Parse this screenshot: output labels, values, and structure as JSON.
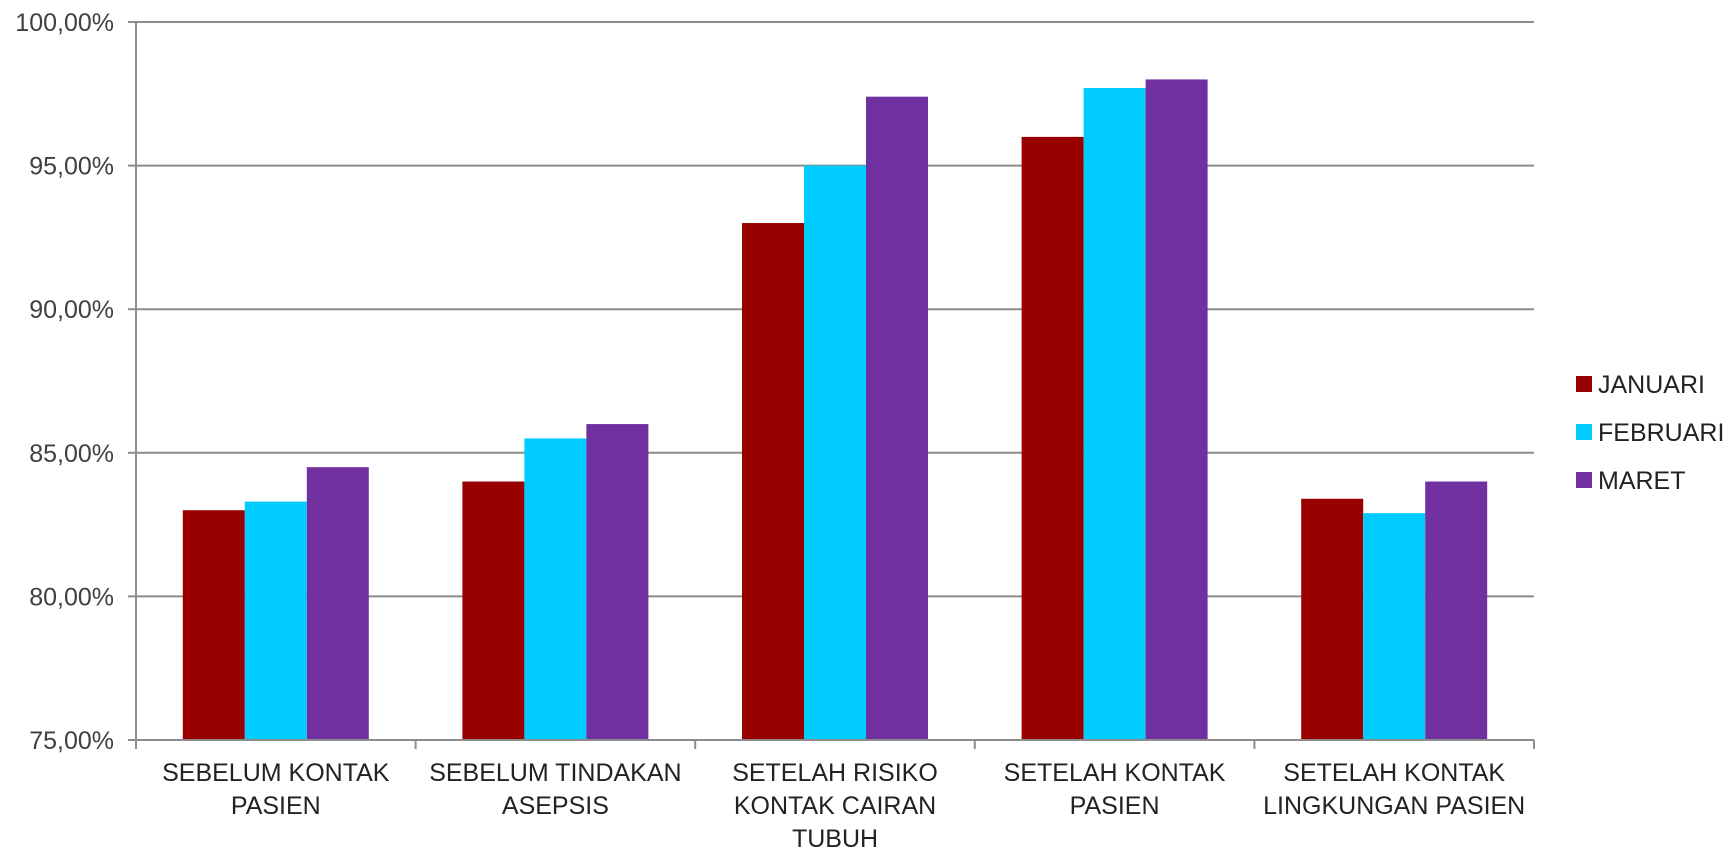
{
  "chart_data": {
    "type": "bar",
    "title": "",
    "xlabel": "",
    "ylabel": "",
    "categories": [
      [
        "SEBELUM KONTAK",
        "PASIEN"
      ],
      [
        "SEBELUM TINDAKAN",
        "ASEPSIS"
      ],
      [
        "SETELAH RISIKO",
        "KONTAK CAIRAN",
        "TUBUH"
      ],
      [
        "SETELAH KONTAK",
        "PASIEN"
      ],
      [
        "SETELAH KONTAK",
        "LINGKUNGAN PASIEN"
      ]
    ],
    "series": [
      {
        "name": "JANUARI",
        "color": "#990000",
        "values": [
          83.0,
          84.0,
          93.0,
          96.0,
          83.4
        ]
      },
      {
        "name": "FEBRUARI",
        "color": "#00CCFF",
        "values": [
          83.3,
          85.5,
          95.0,
          97.7,
          82.9
        ]
      },
      {
        "name": "MARET",
        "color": "#7030A0",
        "values": [
          84.5,
          86.0,
          97.4,
          98.0,
          84.0
        ]
      }
    ],
    "ylim": [
      75,
      100
    ],
    "yticks": [
      75,
      80,
      85,
      90,
      95,
      100
    ],
    "ytick_labels": [
      "75,00%",
      "80,00%",
      "85,00%",
      "90,00%",
      "95,00%",
      "100,00%"
    ],
    "grid": true,
    "legend": "right",
    "colors": {
      "grid": "#8c8c8c",
      "axis": "#8c8c8c"
    }
  }
}
